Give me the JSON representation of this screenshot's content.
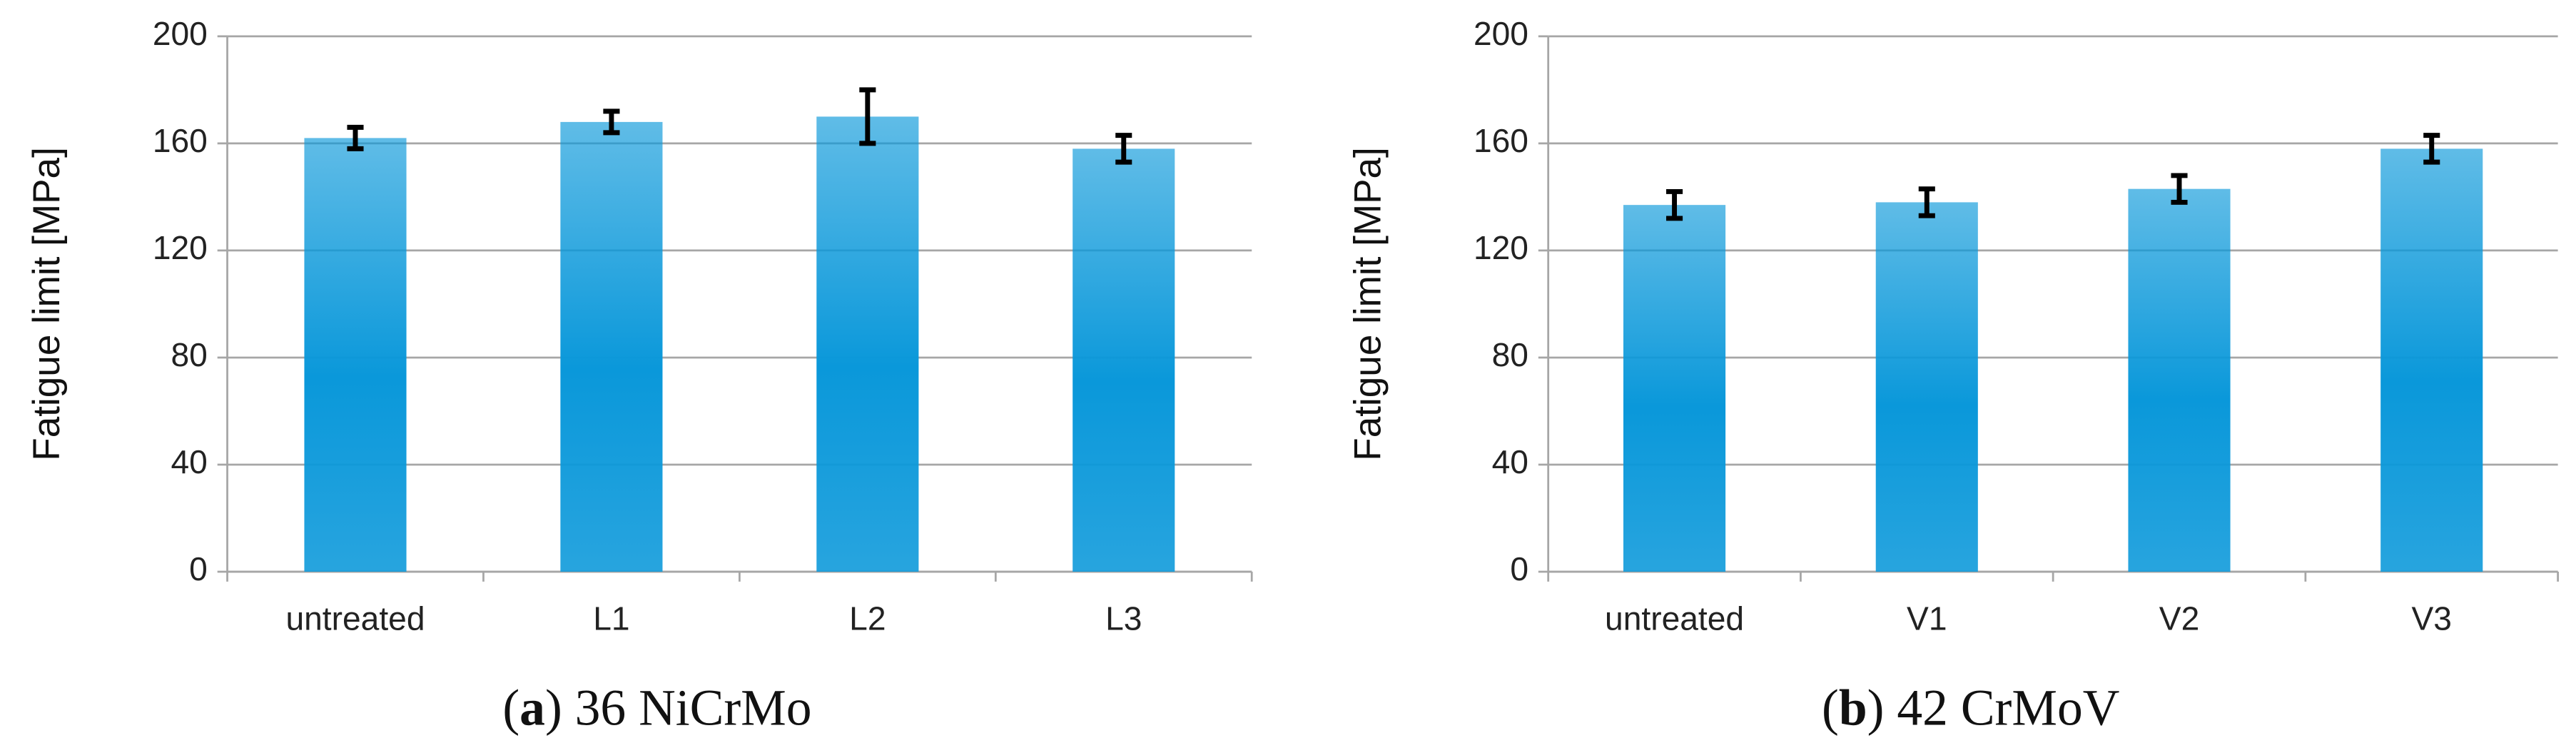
{
  "chart_data": [
    {
      "type": "bar",
      "caption": [
        "(",
        "a",
        ") 36 NiCrMo"
      ],
      "y_label": "Fatigue limit [MPa]",
      "categories": [
        "untreated",
        "L1",
        "L2",
        "L3"
      ],
      "values": [
        162,
        168,
        170,
        158
      ],
      "errors": [
        4,
        4,
        10,
        5
      ],
      "color": "#0a98da",
      "ylim": [
        0,
        200
      ],
      "yticks": [
        0,
        40,
        80,
        120,
        160,
        200
      ],
      "grid": true
    },
    {
      "type": "bar",
      "caption": [
        "(",
        "b",
        ") 42 CrMoV"
      ],
      "y_label": "Fatigue limit [MPa]",
      "categories": [
        "untreated",
        "V1",
        "V2",
        "V3"
      ],
      "values": [
        137,
        138,
        143,
        158
      ],
      "errors": [
        5,
        5,
        5,
        5
      ],
      "color": "#0a98da",
      "ylim": [
        0,
        200
      ],
      "yticks": [
        0,
        40,
        80,
        120,
        160,
        200
      ],
      "grid": true
    }
  ]
}
